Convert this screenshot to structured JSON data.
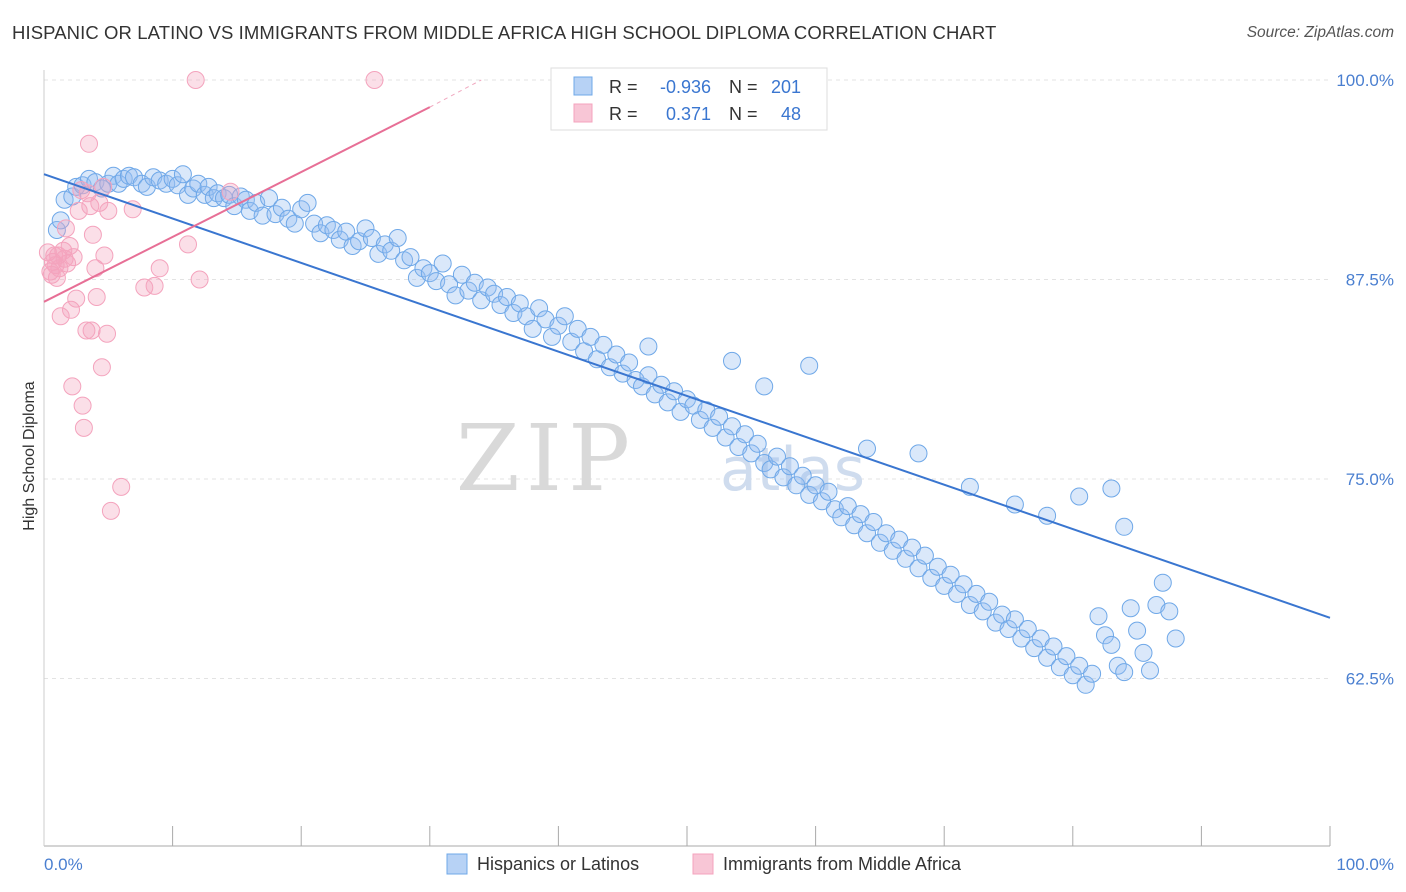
{
  "title": "HISPANIC OR LATINO VS IMMIGRANTS FROM MIDDLE AFRICA HIGH SCHOOL DIPLOMA CORRELATION CHART",
  "source": "Source: ZipAtlas.com",
  "watermark": {
    "zip": "ZIP",
    "atlas": "atlas"
  },
  "colors": {
    "blue": "#6fa8e8",
    "blue_line": "#3a76d0",
    "pink": "#f4a3bd",
    "pink_line": "#e76f96",
    "axis_label": "#4a7fd0",
    "grid": "#e3e3e3"
  },
  "chart_data": {
    "type": "scatter",
    "title": "HISPANIC OR LATINO VS IMMIGRANTS FROM MIDDLE AFRICA HIGH SCHOOL DIPLOMA CORRELATION CHART",
    "xlabel": "",
    "ylabel": "High School Diploma",
    "xlim": [
      0,
      100
    ],
    "ylim": [
      52,
      100
    ],
    "x_tick_labels": [
      "0.0%",
      "100.0%"
    ],
    "y_ticks": [
      62.5,
      75.0,
      87.5,
      100.0
    ],
    "y_tick_labels": [
      "62.5%",
      "75.0%",
      "87.5%",
      "100.0%"
    ],
    "grid": true,
    "legend": {
      "placement": "top-center",
      "entries": [
        {
          "r_label": "R =",
          "r_value": "-0.936",
          "n_label": "N =",
          "n_value": "201"
        },
        {
          "r_label": "R =",
          "r_value": "0.371",
          "n_label": "N =",
          "n_value": "48"
        }
      ]
    },
    "bottom_legend": [
      "Hispanics or Latinos",
      "Immigrants from Middle Africa"
    ],
    "series": [
      {
        "name": "Hispanics or Latinos",
        "color": "#6fa8e8",
        "trend": {
          "x": [
            0,
            100
          ],
          "y": [
            94.1,
            66.3
          ]
        },
        "points": [
          [
            1,
            90.6
          ],
          [
            1.3,
            91.2
          ],
          [
            1.6,
            92.5
          ],
          [
            2.2,
            92.7
          ],
          [
            2.5,
            93.3
          ],
          [
            3,
            93.4
          ],
          [
            3.5,
            93.8
          ],
          [
            4,
            93.6
          ],
          [
            4.5,
            93.2
          ],
          [
            5,
            93.5
          ],
          [
            5.4,
            94.0
          ],
          [
            5.8,
            93.5
          ],
          [
            6.2,
            93.8
          ],
          [
            6.6,
            94.0
          ],
          [
            7,
            93.9
          ],
          [
            7.6,
            93.5
          ],
          [
            8,
            93.3
          ],
          [
            8.5,
            93.9
          ],
          [
            9,
            93.7
          ],
          [
            9.5,
            93.5
          ],
          [
            10,
            93.8
          ],
          [
            10.4,
            93.4
          ],
          [
            10.8,
            94.1
          ],
          [
            11.2,
            92.8
          ],
          [
            11.6,
            93.2
          ],
          [
            12,
            93.5
          ],
          [
            12.5,
            92.8
          ],
          [
            12.8,
            93.3
          ],
          [
            13.2,
            92.6
          ],
          [
            13.5,
            92.9
          ],
          [
            14,
            92.6
          ],
          [
            14.4,
            92.8
          ],
          [
            14.8,
            92.1
          ],
          [
            15.3,
            92.7
          ],
          [
            15.7,
            92.5
          ],
          [
            16,
            91.8
          ],
          [
            16.5,
            92.3
          ],
          [
            17,
            91.5
          ],
          [
            17.5,
            92.6
          ],
          [
            18,
            91.6
          ],
          [
            18.5,
            92.0
          ],
          [
            19,
            91.3
          ],
          [
            19.5,
            91.0
          ],
          [
            20,
            91.9
          ],
          [
            20.5,
            92.3
          ],
          [
            21,
            91.0
          ],
          [
            21.5,
            90.4
          ],
          [
            22,
            90.9
          ],
          [
            22.5,
            90.6
          ],
          [
            23,
            90.0
          ],
          [
            23.5,
            90.5
          ],
          [
            24,
            89.6
          ],
          [
            24.5,
            89.9
          ],
          [
            25,
            90.7
          ],
          [
            25.5,
            90.1
          ],
          [
            26,
            89.1
          ],
          [
            26.5,
            89.7
          ],
          [
            27,
            89.3
          ],
          [
            27.5,
            90.1
          ],
          [
            28,
            88.7
          ],
          [
            28.5,
            88.9
          ],
          [
            29,
            87.6
          ],
          [
            29.5,
            88.2
          ],
          [
            30,
            87.9
          ],
          [
            30.5,
            87.4
          ],
          [
            31,
            88.5
          ],
          [
            31.5,
            87.2
          ],
          [
            32,
            86.5
          ],
          [
            32.5,
            87.8
          ],
          [
            33,
            86.8
          ],
          [
            33.5,
            87.3
          ],
          [
            34,
            86.2
          ],
          [
            34.5,
            87.0
          ],
          [
            35,
            86.6
          ],
          [
            35.5,
            85.9
          ],
          [
            36,
            86.4
          ],
          [
            36.5,
            85.4
          ],
          [
            37,
            86.0
          ],
          [
            37.5,
            85.2
          ],
          [
            38,
            84.4
          ],
          [
            38.5,
            85.7
          ],
          [
            39,
            85.0
          ],
          [
            39.5,
            83.9
          ],
          [
            40,
            84.6
          ],
          [
            40.5,
            85.2
          ],
          [
            41,
            83.6
          ],
          [
            41.5,
            84.4
          ],
          [
            42,
            83.0
          ],
          [
            42.5,
            83.9
          ],
          [
            43,
            82.5
          ],
          [
            43.5,
            83.4
          ],
          [
            44,
            82.0
          ],
          [
            44.5,
            82.8
          ],
          [
            45,
            81.6
          ],
          [
            45.5,
            82.3
          ],
          [
            46,
            81.2
          ],
          [
            46.5,
            80.8
          ],
          [
            47,
            81.5
          ],
          [
            47.5,
            80.3
          ],
          [
            48,
            80.9
          ],
          [
            48.5,
            79.8
          ],
          [
            49,
            80.5
          ],
          [
            49.5,
            79.2
          ],
          [
            50,
            80.0
          ],
          [
            50.5,
            79.6
          ],
          [
            51,
            78.7
          ],
          [
            51.5,
            79.3
          ],
          [
            52,
            78.2
          ],
          [
            52.5,
            78.9
          ],
          [
            53,
            77.6
          ],
          [
            53.5,
            78.3
          ],
          [
            54,
            77.0
          ],
          [
            54.5,
            77.8
          ],
          [
            55,
            76.6
          ],
          [
            55.5,
            77.2
          ],
          [
            56,
            76.0
          ],
          [
            56.5,
            75.6
          ],
          [
            57,
            76.4
          ],
          [
            57.5,
            75.1
          ],
          [
            58,
            75.8
          ],
          [
            58.5,
            74.6
          ],
          [
            59,
            75.2
          ],
          [
            59.5,
            74.0
          ],
          [
            60,
            74.6
          ],
          [
            60.5,
            73.6
          ],
          [
            61,
            74.2
          ],
          [
            61.5,
            73.1
          ],
          [
            62,
            72.6
          ],
          [
            62.5,
            73.3
          ],
          [
            63,
            72.1
          ],
          [
            63.5,
            72.8
          ],
          [
            64,
            71.6
          ],
          [
            64.5,
            72.3
          ],
          [
            65,
            71.0
          ],
          [
            65.5,
            71.6
          ],
          [
            66,
            70.5
          ],
          [
            66.5,
            71.2
          ],
          [
            67,
            70.0
          ],
          [
            67.5,
            70.7
          ],
          [
            68,
            69.4
          ],
          [
            68.5,
            70.2
          ],
          [
            69,
            68.8
          ],
          [
            69.5,
            69.5
          ],
          [
            70,
            68.3
          ],
          [
            70.5,
            69.0
          ],
          [
            71,
            67.8
          ],
          [
            71.5,
            68.4
          ],
          [
            72,
            67.1
          ],
          [
            72.5,
            67.8
          ],
          [
            73,
            66.7
          ],
          [
            73.5,
            67.3
          ],
          [
            74,
            66.0
          ],
          [
            74.5,
            66.5
          ],
          [
            75,
            65.6
          ],
          [
            75.5,
            66.2
          ],
          [
            76,
            65.0
          ],
          [
            76.5,
            65.6
          ],
          [
            77,
            64.4
          ],
          [
            77.5,
            65.0
          ],
          [
            78,
            63.8
          ],
          [
            78.5,
            64.5
          ],
          [
            79,
            63.2
          ],
          [
            79.5,
            63.9
          ],
          [
            80,
            62.7
          ],
          [
            80.5,
            63.3
          ],
          [
            81,
            62.1
          ],
          [
            81.5,
            62.8
          ],
          [
            82,
            66.4
          ],
          [
            82.5,
            65.2
          ],
          [
            83,
            64.6
          ],
          [
            83.5,
            63.3
          ],
          [
            84,
            62.9
          ],
          [
            84.5,
            66.9
          ],
          [
            85,
            65.5
          ],
          [
            85.5,
            64.1
          ],
          [
            86,
            63.0
          ],
          [
            86.5,
            67.1
          ],
          [
            87,
            68.5
          ],
          [
            87.5,
            66.7
          ],
          [
            88,
            65.0
          ],
          [
            47,
            83.3
          ],
          [
            53.5,
            82.4
          ],
          [
            56,
            80.8
          ],
          [
            59.5,
            82.1
          ],
          [
            64,
            76.9
          ],
          [
            68,
            76.6
          ],
          [
            72,
            74.5
          ],
          [
            75.5,
            73.4
          ],
          [
            78,
            72.7
          ],
          [
            80.5,
            73.9
          ],
          [
            83,
            74.4
          ],
          [
            84,
            72.0
          ]
        ]
      },
      {
        "name": "Immigrants from Middle Africa",
        "color": "#f4a3bd",
        "trend": {
          "x": [
            0,
            30
          ],
          "y": [
            86.1,
            98.3
          ]
        },
        "trend_dashed": {
          "x": [
            30,
            34
          ],
          "y": [
            98.3,
            100.0
          ]
        },
        "points": [
          [
            0.3,
            89.2
          ],
          [
            0.5,
            88.0
          ],
          [
            0.6,
            87.8
          ],
          [
            0.7,
            88.6
          ],
          [
            0.8,
            89.0
          ],
          [
            0.9,
            88.4
          ],
          [
            1.0,
            87.6
          ],
          [
            1.1,
            89.0
          ],
          [
            1.2,
            88.2
          ],
          [
            1.3,
            85.2
          ],
          [
            1.5,
            89.3
          ],
          [
            1.6,
            88.8
          ],
          [
            1.7,
            90.7
          ],
          [
            1.8,
            88.5
          ],
          [
            2.0,
            89.6
          ],
          [
            2.1,
            85.6
          ],
          [
            2.2,
            80.8
          ],
          [
            2.3,
            88.9
          ],
          [
            2.5,
            86.3
          ],
          [
            2.7,
            91.8
          ],
          [
            2.9,
            93.1
          ],
          [
            3.0,
            79.6
          ],
          [
            3.1,
            78.2
          ],
          [
            3.3,
            84.3
          ],
          [
            3.4,
            92.9
          ],
          [
            3.5,
            96.0
          ],
          [
            3.6,
            92.1
          ],
          [
            3.7,
            84.3
          ],
          [
            3.8,
            90.3
          ],
          [
            4.0,
            88.2
          ],
          [
            4.1,
            86.4
          ],
          [
            4.3,
            92.3
          ],
          [
            4.5,
            82.0
          ],
          [
            4.6,
            93.3
          ],
          [
            4.7,
            89.0
          ],
          [
            4.9,
            84.1
          ],
          [
            5.0,
            91.8
          ],
          [
            5.2,
            73.0
          ],
          [
            6.0,
            74.5
          ],
          [
            6.9,
            91.9
          ],
          [
            7.8,
            87.0
          ],
          [
            8.6,
            87.1
          ],
          [
            9.0,
            88.2
          ],
          [
            11.2,
            89.7
          ],
          [
            11.8,
            100.0
          ],
          [
            12.1,
            87.5
          ],
          [
            14.5,
            93.0
          ],
          [
            25.7,
            100.0
          ]
        ]
      }
    ]
  }
}
